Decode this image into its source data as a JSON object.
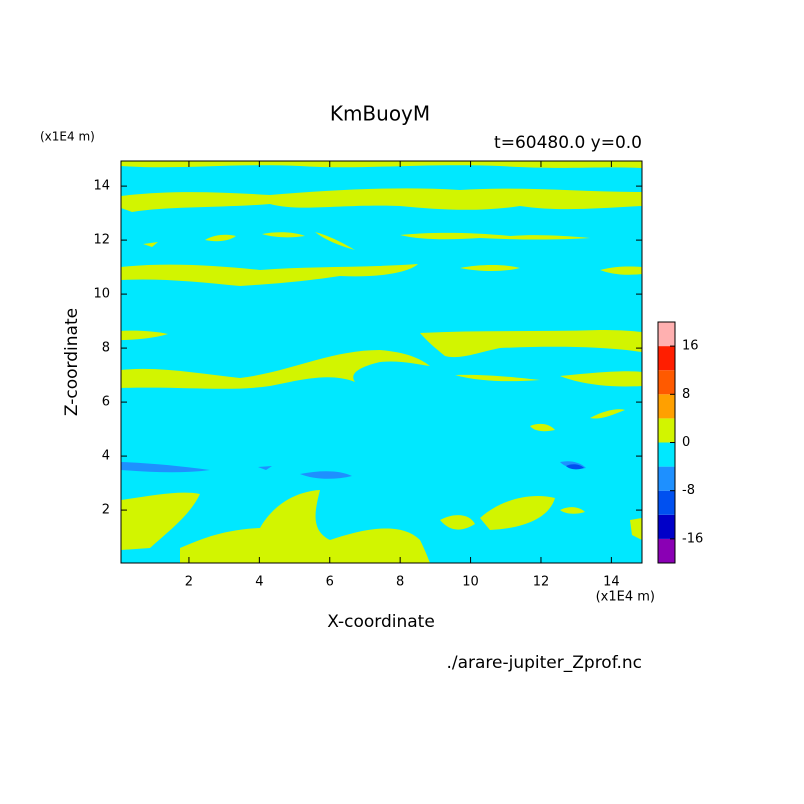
{
  "chart_data": {
    "type": "contour",
    "title": "KmBuoyM",
    "subtitle": "t=60480.0 y=0.0",
    "x_label": "X-coordinate",
    "y_label": "Z-coordinate",
    "x_unit": "(x1E4 m)",
    "y_unit": "(x1E4 m)",
    "source": "./arare-jupiter_Zprof.nc",
    "xlim": [
      0.07,
      14.87
    ],
    "ylim": [
      0.04,
      14.93
    ],
    "xticks": [
      2,
      4,
      6,
      8,
      10,
      12,
      14
    ],
    "yticks": [
      2,
      4,
      6,
      8,
      10,
      12,
      14
    ],
    "colorbar": {
      "bins": [
        -20,
        -16,
        -12,
        -8,
        -4,
        0,
        4,
        8,
        12,
        16,
        20
      ],
      "colors": [
        "#8a00b4",
        "#0000c8",
        "#0050f0",
        "#1e90ff",
        "#00e8ff",
        "#d2f500",
        "#ffa000",
        "#ff5a00",
        "#ff1e00",
        "#ffb0b0"
      ],
      "ticks": [
        -16,
        -8,
        0,
        8,
        16
      ]
    }
  }
}
